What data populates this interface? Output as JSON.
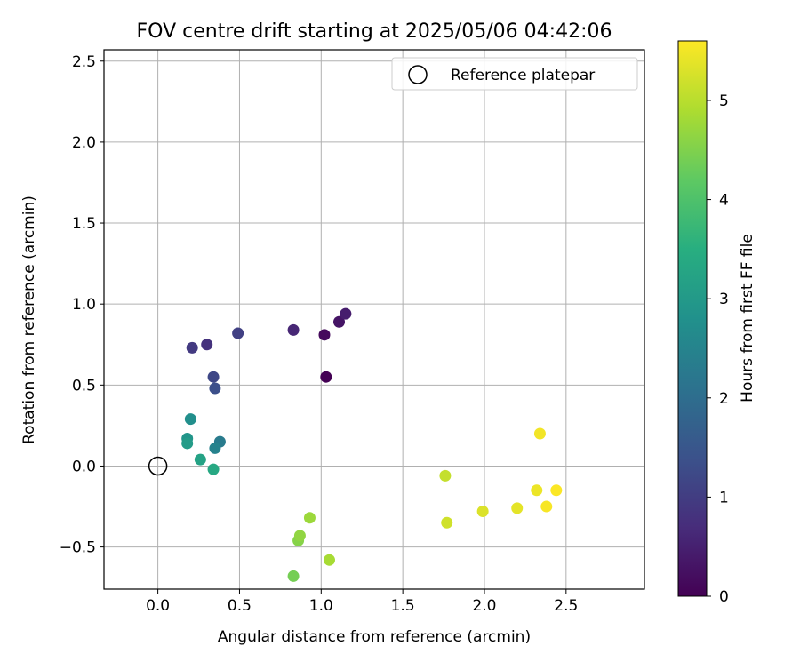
{
  "chart_data": {
    "type": "scatter",
    "title": "FOV centre drift starting at 2025/05/06 04:42:06",
    "xlabel": "Angular distance from reference (arcmin)",
    "ylabel": "Rotation from reference (arcmin)",
    "xlim": [
      -0.33,
      2.98
    ],
    "ylim": [
      -0.76,
      2.57
    ],
    "xticks": [
      "0.0",
      "0.5",
      "1.0",
      "1.5",
      "2.0",
      "2.5"
    ],
    "xtick_values": [
      0.0,
      0.5,
      1.0,
      1.5,
      2.0,
      2.5
    ],
    "yticks": [
      "−0.5",
      "0.0",
      "0.5",
      "1.0",
      "1.5",
      "2.0",
      "2.5"
    ],
    "ytick_values": [
      -0.5,
      0.0,
      0.5,
      1.0,
      1.5,
      2.0,
      2.5
    ],
    "grid": true,
    "legend": {
      "placement": "top-right",
      "label": "Reference platepar"
    },
    "reference_point": {
      "x": 0.0,
      "y": 0.0
    },
    "colorbar": {
      "label": "Hours from first FF file",
      "range": [
        0,
        5.6
      ],
      "ticks": [
        "0",
        "1",
        "2",
        "3",
        "4",
        "5"
      ],
      "tick_values": [
        0,
        1,
        2,
        3,
        4,
        5
      ],
      "colormap": "viridis"
    },
    "points": [
      {
        "x": 1.03,
        "y": 0.55,
        "hours": 0.0
      },
      {
        "x": 1.02,
        "y": 0.81,
        "hours": 0.15
      },
      {
        "x": 1.11,
        "y": 0.89,
        "hours": 0.3
      },
      {
        "x": 1.15,
        "y": 0.94,
        "hours": 0.45
      },
      {
        "x": 0.83,
        "y": 0.84,
        "hours": 0.6
      },
      {
        "x": 0.49,
        "y": 0.82,
        "hours": 1.05
      },
      {
        "x": 0.3,
        "y": 0.75,
        "hours": 0.8
      },
      {
        "x": 0.21,
        "y": 0.73,
        "hours": 0.95
      },
      {
        "x": 0.34,
        "y": 0.55,
        "hours": 1.2
      },
      {
        "x": 0.35,
        "y": 0.48,
        "hours": 1.35
      },
      {
        "x": 0.38,
        "y": 0.15,
        "hours": 2.3
      },
      {
        "x": 0.35,
        "y": 0.11,
        "hours": 2.45
      },
      {
        "x": 0.2,
        "y": 0.29,
        "hours": 2.75
      },
      {
        "x": 0.18,
        "y": 0.17,
        "hours": 2.9
      },
      {
        "x": 0.18,
        "y": 0.14,
        "hours": 3.05
      },
      {
        "x": 0.26,
        "y": 0.04,
        "hours": 3.2
      },
      {
        "x": 0.34,
        "y": -0.02,
        "hours": 3.35
      },
      {
        "x": 0.83,
        "y": -0.68,
        "hours": 4.4
      },
      {
        "x": 0.86,
        "y": -0.46,
        "hours": 4.55
      },
      {
        "x": 0.87,
        "y": -0.43,
        "hours": 4.65
      },
      {
        "x": 0.93,
        "y": -0.32,
        "hours": 4.75
      },
      {
        "x": 1.05,
        "y": -0.58,
        "hours": 4.85
      },
      {
        "x": 1.76,
        "y": -0.06,
        "hours": 5.1
      },
      {
        "x": 1.77,
        "y": -0.35,
        "hours": 5.2
      },
      {
        "x": 1.99,
        "y": -0.28,
        "hours": 5.3
      },
      {
        "x": 2.2,
        "y": -0.26,
        "hours": 5.38
      },
      {
        "x": 2.32,
        "y": -0.15,
        "hours": 5.45
      },
      {
        "x": 2.34,
        "y": 0.2,
        "hours": 5.5
      },
      {
        "x": 2.38,
        "y": -0.25,
        "hours": 5.55
      },
      {
        "x": 2.44,
        "y": -0.15,
        "hours": 5.58
      }
    ]
  }
}
